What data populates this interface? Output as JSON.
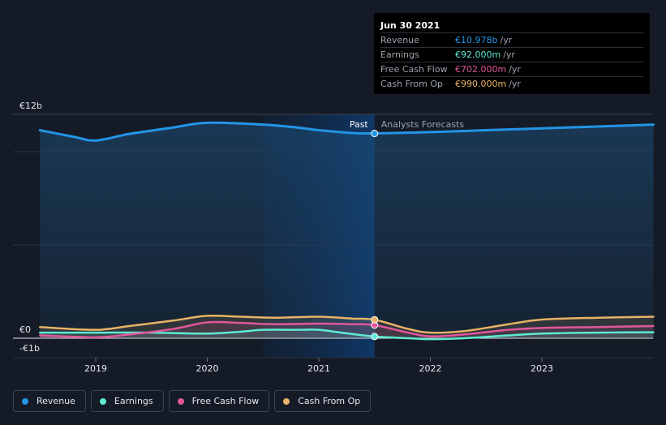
{
  "chart_data": {
    "type": "line",
    "title": "",
    "xlabel": "",
    "ylabel": "",
    "x_ticks": [
      "2019",
      "2020",
      "2021",
      "2022",
      "2023"
    ],
    "y_labels": [
      "€12b",
      "€0",
      "-€1b"
    ],
    "ylim": [
      -1,
      12
    ],
    "past_label": "Past",
    "forecast_label": "Analysts Forecasts",
    "series": [
      {
        "name": "Revenue",
        "color": "#2394e6",
        "points": [
          [
            2018.5,
            11.15
          ],
          [
            2018.8,
            10.8
          ],
          [
            2019.0,
            10.6
          ],
          [
            2019.3,
            10.95
          ],
          [
            2019.7,
            11.3
          ],
          [
            2020.0,
            11.55
          ],
          [
            2020.5,
            11.45
          ],
          [
            2020.8,
            11.3
          ],
          [
            2021.0,
            11.15
          ],
          [
            2021.3,
            11.0
          ],
          [
            2021.5,
            10.978
          ],
          [
            2022.0,
            11.05
          ],
          [
            2022.5,
            11.15
          ],
          [
            2023.0,
            11.25
          ],
          [
            2023.5,
            11.35
          ],
          [
            2024.0,
            11.45
          ]
        ]
      },
      {
        "name": "Earnings",
        "color": "#5eead4",
        "points": [
          [
            2018.5,
            0.3
          ],
          [
            2019.0,
            0.3
          ],
          [
            2019.5,
            0.3
          ],
          [
            2020.0,
            0.25
          ],
          [
            2020.3,
            0.35
          ],
          [
            2020.5,
            0.45
          ],
          [
            2020.8,
            0.45
          ],
          [
            2021.0,
            0.45
          ],
          [
            2021.2,
            0.3
          ],
          [
            2021.5,
            0.092
          ],
          [
            2021.8,
            0.0
          ],
          [
            2022.0,
            -0.05
          ],
          [
            2022.3,
            0.0
          ],
          [
            2022.7,
            0.15
          ],
          [
            2023.0,
            0.25
          ],
          [
            2023.5,
            0.3
          ],
          [
            2024.0,
            0.32
          ]
        ]
      },
      {
        "name": "Free Cash Flow",
        "color": "#e0579b",
        "points": [
          [
            2018.5,
            0.15
          ],
          [
            2019.0,
            0.05
          ],
          [
            2019.3,
            0.2
          ],
          [
            2019.7,
            0.5
          ],
          [
            2020.0,
            0.85
          ],
          [
            2020.3,
            0.82
          ],
          [
            2020.6,
            0.75
          ],
          [
            2021.0,
            0.78
          ],
          [
            2021.3,
            0.75
          ],
          [
            2021.5,
            0.702
          ],
          [
            2021.8,
            0.3
          ],
          [
            2022.0,
            0.1
          ],
          [
            2022.3,
            0.2
          ],
          [
            2022.7,
            0.45
          ],
          [
            2023.0,
            0.55
          ],
          [
            2023.5,
            0.6
          ],
          [
            2024.0,
            0.65
          ]
        ]
      },
      {
        "name": "Cash From Op",
        "color": "#e8b365",
        "points": [
          [
            2018.5,
            0.6
          ],
          [
            2019.0,
            0.45
          ],
          [
            2019.3,
            0.65
          ],
          [
            2019.7,
            0.95
          ],
          [
            2020.0,
            1.2
          ],
          [
            2020.3,
            1.15
          ],
          [
            2020.6,
            1.1
          ],
          [
            2021.0,
            1.15
          ],
          [
            2021.3,
            1.05
          ],
          [
            2021.5,
            0.99
          ],
          [
            2021.8,
            0.5
          ],
          [
            2022.0,
            0.3
          ],
          [
            2022.3,
            0.38
          ],
          [
            2022.7,
            0.75
          ],
          [
            2023.0,
            1.0
          ],
          [
            2023.5,
            1.1
          ],
          [
            2024.0,
            1.15
          ]
        ]
      }
    ],
    "highlight_x": 2021.5
  },
  "tooltip": {
    "date": "Jun 30 2021",
    "rows": [
      {
        "label": "Revenue",
        "value": "€10.978b",
        "unit": "/yr",
        "color": "#2394e6"
      },
      {
        "label": "Earnings",
        "value": "€92.000m",
        "unit": "/yr",
        "color": "#5eead4"
      },
      {
        "label": "Free Cash Flow",
        "value": "€702.000m",
        "unit": "/yr",
        "color": "#e0579b"
      },
      {
        "label": "Cash From Op",
        "value": "€990.000m",
        "unit": "/yr",
        "color": "#e8b365"
      }
    ]
  },
  "legend": [
    {
      "label": "Revenue",
      "color": "#2394e6"
    },
    {
      "label": "Earnings",
      "color": "#5eead4"
    },
    {
      "label": "Free Cash Flow",
      "color": "#e0579b"
    },
    {
      "label": "Cash From Op",
      "color": "#e8b365"
    }
  ]
}
